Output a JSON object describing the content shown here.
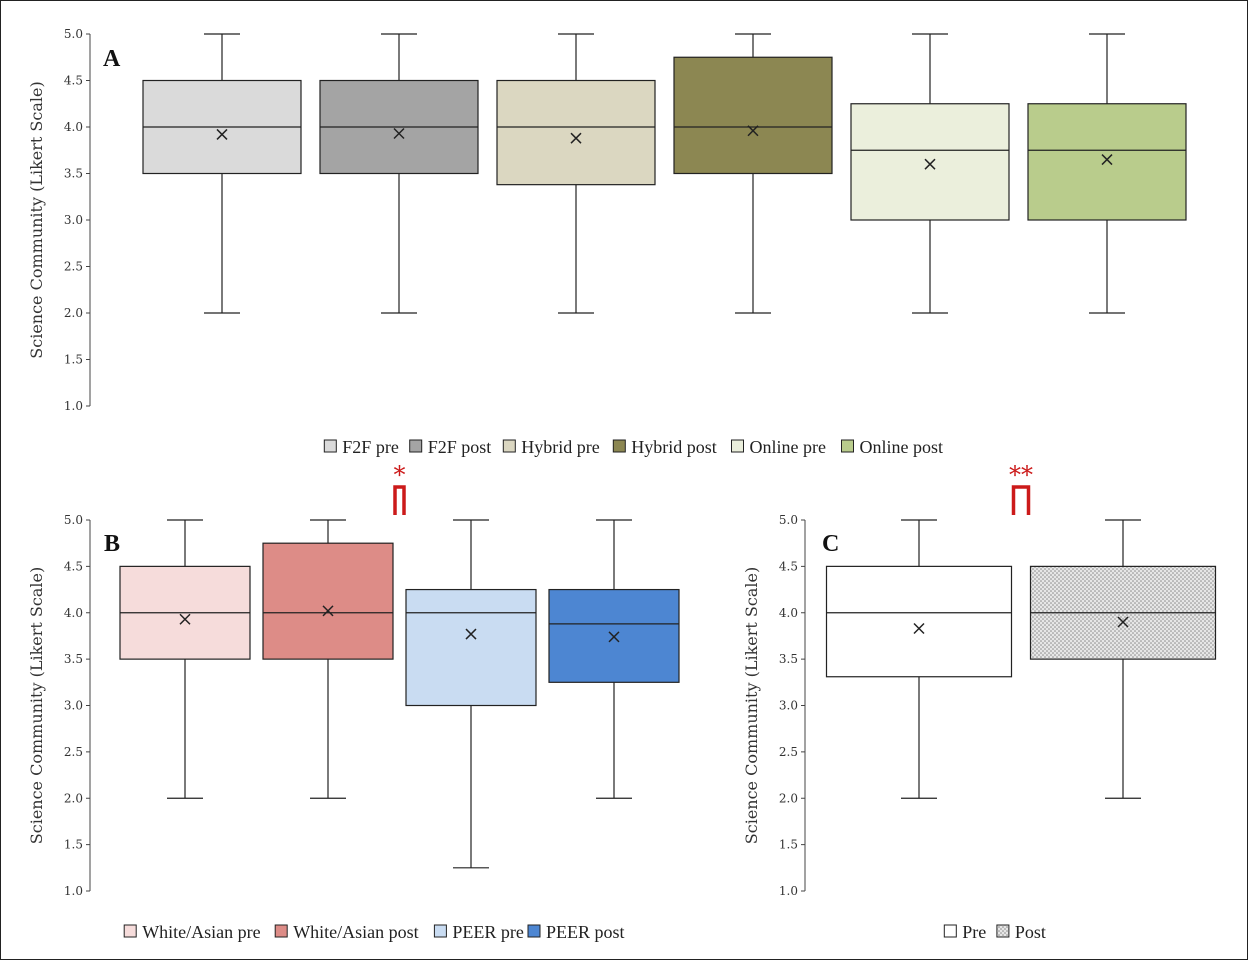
{
  "chart_data": [
    {
      "type": "box",
      "panel_label": "A",
      "ylabel": "Science Community (Likert Scale)",
      "ylim": [
        1.0,
        5.0
      ],
      "yticks": [
        "1.0",
        "1.5",
        "2.0",
        "2.5",
        "3.0",
        "3.5",
        "4.0",
        "4.5",
        "5.0"
      ],
      "legend_position": "bottom",
      "series": [
        {
          "name": "F2F pre",
          "min": 2.0,
          "q1": 3.5,
          "median": 4.0,
          "q3": 4.5,
          "max": 5.0,
          "mean": 3.92,
          "color": "#dadada"
        },
        {
          "name": "F2F post",
          "min": 2.0,
          "q1": 3.5,
          "median": 4.0,
          "q3": 4.5,
          "max": 5.0,
          "mean": 3.93,
          "color": "#a4a4a4"
        },
        {
          "name": "Hybrid pre",
          "min": 2.0,
          "q1": 3.38,
          "median": 4.0,
          "q3": 4.5,
          "max": 5.0,
          "mean": 3.88,
          "color": "#dbd7c1"
        },
        {
          "name": "Hybrid post",
          "min": 2.0,
          "q1": 3.5,
          "median": 4.0,
          "q3": 4.75,
          "max": 5.0,
          "mean": 3.96,
          "color": "#8c8752"
        },
        {
          "name": "Online pre",
          "min": 2.0,
          "q1": 3.0,
          "median": 3.75,
          "q3": 4.25,
          "max": 5.0,
          "mean": 3.6,
          "color": "#ebefdc"
        },
        {
          "name": "Online post",
          "min": 2.0,
          "q1": 3.0,
          "median": 3.75,
          "q3": 4.25,
          "max": 5.0,
          "mean": 3.65,
          "color": "#b9cc8c"
        }
      ]
    },
    {
      "type": "box",
      "panel_label": "B",
      "ylabel": "Science Community (Likert Scale)",
      "ylim": [
        1.0,
        5.0
      ],
      "yticks": [
        "1.0",
        "1.5",
        "2.0",
        "2.5",
        "3.0",
        "3.5",
        "4.0",
        "4.5",
        "5.0"
      ],
      "legend_position": "bottom",
      "significance": {
        "label": "*",
        "between": [
          1,
          2
        ],
        "color": "#cc1a1a"
      },
      "series": [
        {
          "name": "White/Asian pre",
          "min": 2.0,
          "q1": 3.5,
          "median": 4.0,
          "q3": 4.5,
          "max": 5.0,
          "mean": 3.93,
          "color": "#f6dcdb"
        },
        {
          "name": "White/Asian post",
          "min": 2.0,
          "q1": 3.5,
          "median": 4.0,
          "q3": 4.75,
          "max": 5.0,
          "mean": 4.02,
          "color": "#dd8c87"
        },
        {
          "name": "PEER pre",
          "min": 1.25,
          "q1": 3.0,
          "median": 4.0,
          "q3": 4.25,
          "max": 5.0,
          "mean": 3.77,
          "color": "#c9dcf2"
        },
        {
          "name": "PEER post",
          "min": 2.0,
          "q1": 3.25,
          "median": 3.88,
          "q3": 4.25,
          "max": 5.0,
          "mean": 3.74,
          "color": "#4d86d2"
        }
      ]
    },
    {
      "type": "box",
      "panel_label": "C",
      "ylabel": "Science Community (Likert Scale)",
      "ylim": [
        1.0,
        5.0
      ],
      "yticks": [
        "1.0",
        "1.5",
        "2.0",
        "2.5",
        "3.0",
        "3.5",
        "4.0",
        "4.5",
        "5.0"
      ],
      "legend_position": "bottom",
      "significance": {
        "label": "**",
        "between": [
          0,
          1
        ],
        "color": "#cc1a1a"
      },
      "series": [
        {
          "name": "Pre",
          "min": 2.0,
          "q1": 3.31,
          "median": 4.0,
          "q3": 4.5,
          "max": 5.0,
          "mean": 3.83,
          "color": "#ffffff"
        },
        {
          "name": "Post",
          "min": 2.0,
          "q1": 3.5,
          "median": 4.0,
          "q3": 4.5,
          "max": 5.0,
          "mean": 3.9,
          "color": "#e6e6e6",
          "pattern": "dotted"
        }
      ]
    }
  ]
}
